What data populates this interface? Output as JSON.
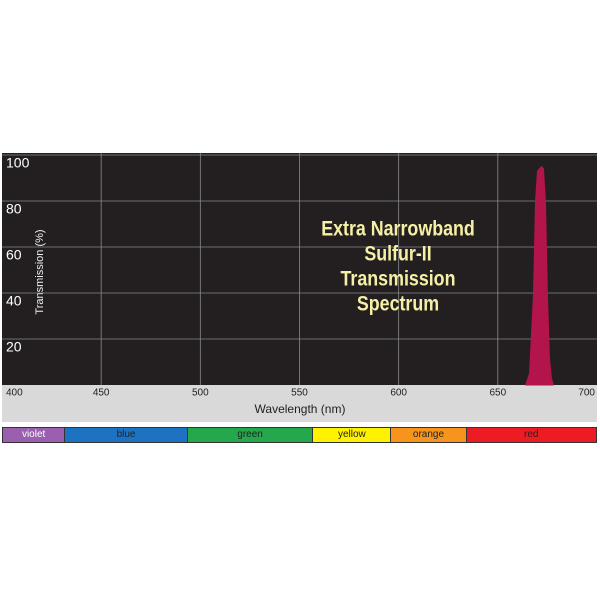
{
  "chart_data": {
    "type": "area",
    "title": [
      "Extra Narrowband",
      "Sulfur-II",
      "Transmission",
      "Spectrum"
    ],
    "x_label": "Wavelength (nm)",
    "y_label": "Transmission (%)",
    "x": [
      664,
      666,
      668,
      669,
      670,
      671,
      672,
      673,
      674,
      675,
      676,
      677,
      678
    ],
    "series": [
      {
        "color": "#b3144b",
        "values": [
          0,
          5,
          40,
          80,
          93,
          94,
          95,
          94,
          80,
          40,
          12,
          3,
          0
        ]
      }
    ],
    "xlim": [
      400,
      700
    ],
    "xticks": [
      400,
      450,
      500,
      550,
      600,
      650,
      700
    ],
    "ylim": [
      0,
      100
    ],
    "yticks": [
      20,
      40,
      60,
      80,
      100
    ],
    "grid": true,
    "color_bands": [
      "violet",
      "blue",
      "green",
      "yellow",
      "orange",
      "red"
    ]
  }
}
